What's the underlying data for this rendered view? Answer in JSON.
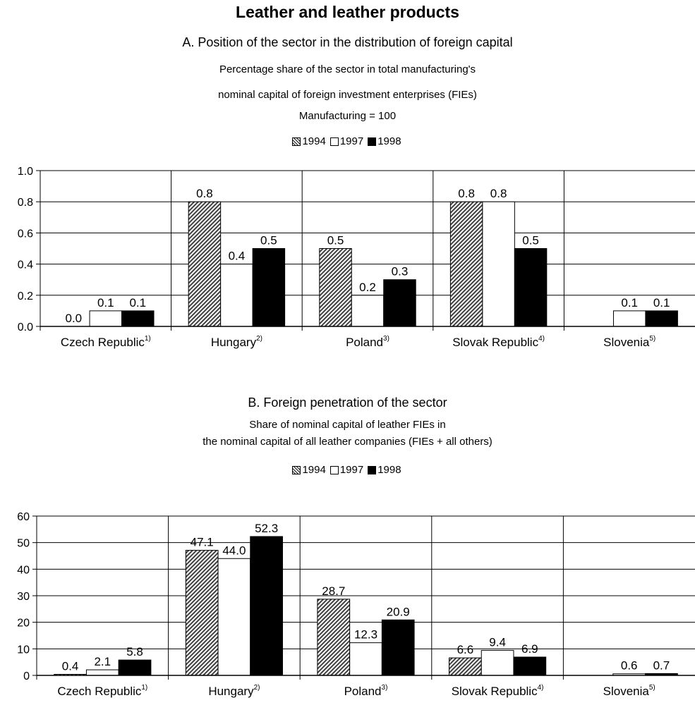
{
  "page": {
    "title": "Leather and leather products",
    "a_title": "A. Position of the sector in the distribution of foreign capital",
    "a_subtitle_1": "Percentage share of the sector in total manufacturing's",
    "a_subtitle_2": "nominal capital of foreign investment enterprises (FIEs)",
    "a_subtitle_3": "Manufacturing = 100",
    "b_title": "B. Foreign penetration of the sector",
    "b_subtitle_1": "Share of nominal capital of leather FIEs in",
    "b_subtitle_2": "the nominal capital of all leather companies (FIEs + all others)"
  },
  "colors": {
    "1994": "hatched-grey",
    "1997": "#ffffff",
    "1998": "#000000"
  },
  "chart_data": [
    {
      "type": "bar",
      "title": "A. Position of the sector in the distribution of foreign capital",
      "categories": [
        "Czech Republic",
        "Hungary",
        "Poland",
        "Slovak Republic",
        "Slovenia"
      ],
      "category_notes": [
        "1)",
        "2)",
        "3)",
        "4)",
        "5)"
      ],
      "series": [
        {
          "name": "1994",
          "values": [
            0.0,
            0.8,
            0.5,
            0.8,
            null
          ],
          "labels": [
            "0.0",
            "0.8",
            "0.5",
            "0.8",
            ""
          ]
        },
        {
          "name": "1997",
          "values": [
            0.1,
            0.4,
            0.2,
            0.8,
            0.1
          ],
          "labels": [
            "0.1",
            "0.4",
            "0.2",
            "0.8",
            "0.1"
          ]
        },
        {
          "name": "1998",
          "values": [
            0.1,
            0.5,
            0.3,
            0.5,
            0.1
          ],
          "labels": [
            "0.1",
            "0.5",
            "0.3",
            "0.5",
            "0.1"
          ]
        }
      ],
      "ylim": [
        0,
        1.0
      ],
      "yticks": [
        "0.0",
        "0.2",
        "0.4",
        "0.6",
        "0.8",
        "1.0"
      ],
      "grid": true,
      "legend": "top-center"
    },
    {
      "type": "bar",
      "title": "B. Foreign penetration of the sector",
      "categories": [
        "Czech Republic",
        "Hungary",
        "Poland",
        "Slovak Republic",
        "Slovenia"
      ],
      "category_notes": [
        "1)",
        "2)",
        "3)",
        "4)",
        "5)"
      ],
      "series": [
        {
          "name": "1994",
          "values": [
            0.4,
            47.1,
            28.7,
            6.6,
            null
          ],
          "labels": [
            "0.4",
            "47.1",
            "28.7",
            "6.6",
            ""
          ]
        },
        {
          "name": "1997",
          "values": [
            2.1,
            44.0,
            12.3,
            9.4,
            0.6
          ],
          "labels": [
            "2.1",
            "44.0",
            "12.3",
            "9.4",
            "0.6"
          ]
        },
        {
          "name": "1998",
          "values": [
            5.8,
            52.3,
            20.9,
            6.9,
            0.7
          ],
          "labels": [
            "5.8",
            "52.3",
            "20.9",
            "6.9",
            "0.7"
          ]
        }
      ],
      "ylim": [
        0,
        60
      ],
      "yticks": [
        "0",
        "10",
        "20",
        "30",
        "40",
        "50",
        "60"
      ],
      "grid": true,
      "legend": "top-center"
    }
  ]
}
